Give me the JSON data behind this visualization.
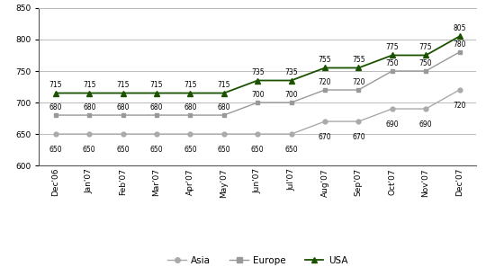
{
  "categories": [
    "Dec'06",
    "Jan'07",
    "Feb'07",
    "Mar'07",
    "Apr'07",
    "May'07",
    "Jun'07",
    "Jul'07",
    "Aug'07",
    "Sep'07",
    "Oct'07",
    "Nov'07",
    "Dec'07"
  ],
  "asia": [
    650,
    650,
    650,
    650,
    650,
    650,
    650,
    650,
    670,
    670,
    690,
    690,
    720
  ],
  "europe": [
    680,
    680,
    680,
    680,
    680,
    680,
    700,
    700,
    720,
    720,
    750,
    750,
    780
  ],
  "usa": [
    715,
    715,
    715,
    715,
    715,
    715,
    735,
    735,
    755,
    755,
    775,
    775,
    805
  ],
  "asia_labels": [
    "650",
    "650",
    "650",
    "650",
    "650",
    "650",
    "650",
    "650",
    "670",
    "670",
    "690",
    "690",
    "720"
  ],
  "europe_labels": [
    "680",
    "680",
    "680",
    "680",
    "680",
    "680",
    "700",
    "700",
    "720",
    "720",
    "750",
    "750",
    "780"
  ],
  "usa_labels": [
    "715",
    "715",
    "715",
    "715",
    "715",
    "715",
    "735",
    "735",
    "755",
    "755",
    "775",
    "775",
    "805"
  ],
  "asia_color": "#aaaaaa",
  "europe_color": "#999999",
  "usa_color": "#1a5200",
  "ylim": [
    600,
    850
  ],
  "yticks": [
    600,
    650,
    700,
    750,
    800,
    850
  ],
  "background_color": "#ffffff",
  "grid_color": "#bbbbbb",
  "label_fontsize": 5.5,
  "axis_fontsize": 6.5,
  "legend_fontsize": 7.5
}
